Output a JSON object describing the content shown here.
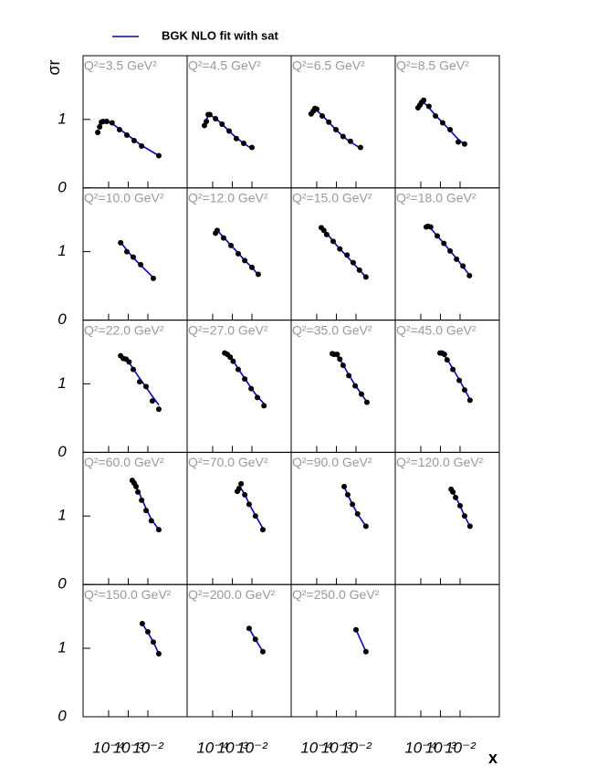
{
  "chart_data": {
    "type": "scatter",
    "xlabel": "x",
    "ylabel": "σr",
    "legend": {
      "label": "BGK NLO fit with sat",
      "color": "#0000cc"
    },
    "log_x": true,
    "xlim": [
      5e-06,
      1
    ],
    "xticks": [
      {
        "value": 0.0001,
        "label": "10⁻⁴"
      },
      {
        "value": 0.001,
        "label": "10⁻³"
      },
      {
        "value": 0.01,
        "label": "10⁻²"
      }
    ],
    "ylim": [
      0,
      1.93
    ],
    "yticks": [
      0,
      1
    ],
    "point_color": "#000000",
    "panels": [
      {
        "title": "Q²=3.5 GeV²",
        "x": [
          2.8e-05,
          3.5e-05,
          4.3e-05,
          5.3e-05,
          8e-05,
          0.00015,
          0.00036,
          0.00085,
          0.002,
          0.0048,
          0.036
        ],
        "values": [
          0.81,
          0.89,
          0.96,
          0.97,
          0.97,
          0.95,
          0.85,
          0.77,
          0.69,
          0.61,
          0.47
        ],
        "fit": [
          0.9,
          0.93,
          0.96,
          0.97,
          0.97,
          0.94,
          0.86,
          0.78,
          0.7,
          0.62,
          0.47
        ]
      },
      {
        "title": "Q²=4.5 GeV²",
        "x": [
          3.8e-05,
          4.8e-05,
          5.9e-05,
          7.2e-05,
          0.00014,
          0.0003,
          0.00069,
          0.0016,
          0.0038,
          0.01
        ],
        "values": [
          0.91,
          0.97,
          1.07,
          1.07,
          1.01,
          0.93,
          0.83,
          0.72,
          0.65,
          0.59
        ],
        "fit": [
          0.95,
          1.0,
          1.05,
          1.06,
          1.02,
          0.93,
          0.83,
          0.73,
          0.65,
          0.57
        ]
      },
      {
        "title": "Q²=6.5 GeV²",
        "x": [
          5.2e-05,
          6.6e-05,
          8.1e-05,
          0.0001,
          0.00019,
          0.00041,
          0.00095,
          0.0022,
          0.0052,
          0.017
        ],
        "values": [
          1.08,
          1.12,
          1.16,
          1.15,
          1.05,
          0.96,
          0.85,
          0.75,
          0.68,
          0.59
        ],
        "fit": [
          1.1,
          1.13,
          1.14,
          1.13,
          1.06,
          0.96,
          0.85,
          0.75,
          0.67,
          0.58
        ]
      },
      {
        "title": "Q²=8.5 GeV²",
        "x": [
          7.2e-05,
          9.1e-05,
          0.00011,
          0.00014,
          0.00026,
          0.00056,
          0.0013,
          0.0031,
          0.0081,
          0.017
        ],
        "values": [
          1.17,
          1.21,
          1.25,
          1.28,
          1.19,
          1.05,
          0.95,
          0.85,
          0.67,
          0.64
        ],
        "fit": [
          1.22,
          1.25,
          1.26,
          1.25,
          1.17,
          1.06,
          0.95,
          0.84,
          0.71,
          0.63
        ]
      },
      {
        "title": "Q²=10.0 GeV²",
        "x": [
          0.00041,
          0.00085,
          0.0018,
          0.0043,
          0.019
        ],
        "values": [
          1.13,
          1.0,
          0.92,
          0.81,
          0.61
        ],
        "fit": [
          1.14,
          1.02,
          0.91,
          0.8,
          0.62
        ]
      },
      {
        "title": "Q²=12.0 GeV²",
        "x": [
          0.00014,
          0.00017,
          0.00036,
          0.00085,
          0.002,
          0.0043,
          0.01,
          0.021
        ],
        "values": [
          1.27,
          1.31,
          1.2,
          1.09,
          0.97,
          0.87,
          0.77,
          0.67
        ],
        "fit": [
          1.32,
          1.31,
          1.21,
          1.09,
          0.98,
          0.87,
          0.77,
          0.66
        ]
      },
      {
        "title": "Q²=15.0 GeV²",
        "x": [
          0.00017,
          0.00023,
          0.00032,
          0.00069,
          0.0015,
          0.0035,
          0.0072,
          0.015,
          0.032
        ],
        "values": [
          1.35,
          1.31,
          1.25,
          1.15,
          1.04,
          0.95,
          0.84,
          0.73,
          0.63
        ],
        "fit": [
          1.35,
          1.32,
          1.27,
          1.15,
          1.04,
          0.93,
          0.83,
          0.73,
          0.63
        ]
      },
      {
        "title": "Q²=18.0 GeV²",
        "x": [
          0.00019,
          0.00023,
          0.00032,
          0.00069,
          0.0015,
          0.0031,
          0.0066,
          0.014,
          0.03
        ],
        "values": [
          1.36,
          1.37,
          1.36,
          1.23,
          1.12,
          1.01,
          0.89,
          0.79,
          0.65
        ],
        "fit": [
          1.37,
          1.37,
          1.34,
          1.23,
          1.12,
          1.01,
          0.9,
          0.78,
          0.66
        ]
      },
      {
        "title": "Q²=22.0 GeV²",
        "x": [
          0.00041,
          0.00056,
          0.00078,
          0.0011,
          0.0018,
          0.0038,
          0.0081,
          0.017,
          0.036
        ],
        "values": [
          1.41,
          1.37,
          1.36,
          1.32,
          1.21,
          1.03,
          0.96,
          0.75,
          0.63
        ],
        "fit": [
          1.41,
          1.39,
          1.35,
          1.31,
          1.22,
          1.08,
          0.95,
          0.82,
          0.69
        ]
      },
      {
        "title": "Q²=27.0 GeV²",
        "x": [
          0.00041,
          0.00056,
          0.00078,
          0.0011,
          0.002,
          0.0043,
          0.0091,
          0.019,
          0.041
        ],
        "values": [
          1.45,
          1.43,
          1.39,
          1.33,
          1.21,
          1.07,
          0.93,
          0.8,
          0.68
        ],
        "fit": [
          1.45,
          1.42,
          1.38,
          1.34,
          1.22,
          1.08,
          0.94,
          0.81,
          0.71
        ]
      },
      {
        "title": "Q²=35.0 GeV²",
        "x": [
          0.00062,
          0.00078,
          0.0011,
          0.0015,
          0.0022,
          0.0043,
          0.0091,
          0.019,
          0.036
        ],
        "values": [
          1.44,
          1.43,
          1.43,
          1.36,
          1.27,
          1.12,
          0.97,
          0.85,
          0.73
        ],
        "fit": [
          1.45,
          1.43,
          1.4,
          1.36,
          1.28,
          1.13,
          0.98,
          0.85,
          0.73
        ]
      },
      {
        "title": "Q²=45.0 GeV²",
        "x": [
          0.00095,
          0.0012,
          0.0016,
          0.0022,
          0.0043,
          0.0091,
          0.017,
          0.032
        ],
        "values": [
          1.45,
          1.45,
          1.43,
          1.35,
          1.21,
          1.05,
          0.91,
          0.76
        ],
        "fit": [
          1.46,
          1.44,
          1.41,
          1.36,
          1.22,
          1.06,
          0.92,
          0.77
        ]
      },
      {
        "title": "Q²=60.0 GeV²",
        "x": [
          0.0016,
          0.002,
          0.0025,
          0.0031,
          0.0048,
          0.0081,
          0.015,
          0.036
        ],
        "values": [
          1.52,
          1.48,
          1.43,
          1.35,
          1.23,
          1.08,
          0.93,
          0.8
        ],
        "fit": [
          1.52,
          1.48,
          1.43,
          1.38,
          1.26,
          1.11,
          0.95,
          0.8
        ]
      },
      {
        "title": "Q²=70.0 GeV²",
        "x": [
          0.0018,
          0.0022,
          0.0028,
          0.0043,
          0.0072,
          0.015,
          0.036
        ],
        "values": [
          1.36,
          1.4,
          1.47,
          1.31,
          1.17,
          1.0,
          0.8
        ],
        "fit": [
          1.43,
          1.42,
          1.4,
          1.32,
          1.18,
          1.01,
          0.82
        ]
      },
      {
        "title": "Q²=90.0 GeV²",
        "x": [
          0.0025,
          0.0038,
          0.0066,
          0.012,
          0.032
        ],
        "values": [
          1.43,
          1.31,
          1.17,
          1.03,
          0.85
        ],
        "fit": [
          1.43,
          1.31,
          1.17,
          1.03,
          0.85
        ]
      },
      {
        "title": "Q²=120.0 GeV²",
        "x": [
          0.0035,
          0.0043,
          0.0059,
          0.01,
          0.017,
          0.032
        ],
        "values": [
          1.39,
          1.35,
          1.27,
          1.15,
          1.0,
          0.85
        ],
        "fit": [
          1.4,
          1.36,
          1.28,
          1.15,
          1.0,
          0.85
        ]
      },
      {
        "title": "Q²=150.0 GeV²",
        "x": [
          0.0052,
          0.01,
          0.019,
          0.036
        ],
        "values": [
          1.36,
          1.24,
          1.09,
          0.92
        ],
        "fit": [
          1.36,
          1.23,
          1.09,
          0.92
        ]
      },
      {
        "title": "Q²=200.0 GeV²",
        "x": [
          0.0072,
          0.015,
          0.036
        ],
        "values": [
          1.29,
          1.13,
          0.95
        ],
        "fit": [
          1.29,
          1.13,
          0.95
        ]
      },
      {
        "title": "Q²=250.0 GeV²",
        "x": [
          0.01,
          0.032
        ],
        "values": [
          1.27,
          0.95
        ],
        "fit": [
          1.27,
          0.95
        ]
      }
    ]
  }
}
